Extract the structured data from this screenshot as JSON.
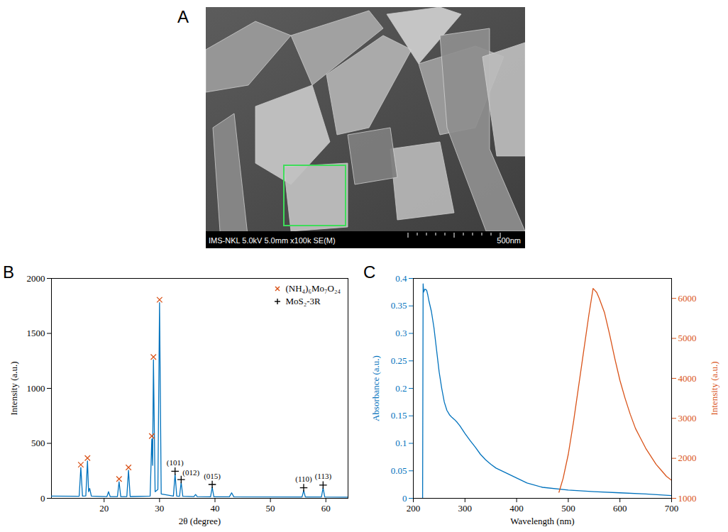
{
  "chart_data": [
    {
      "type": "image",
      "panel": "A",
      "caption": "IMS-NKL 5.0kV 5.0mm x100k SE(M)",
      "scale_bar": "500nm"
    },
    {
      "type": "line",
      "panel": "B",
      "xlabel": "2θ (degree)",
      "ylabel": "Intensity (a.u.)",
      "xlim": [
        10.5,
        64
      ],
      "xticks": [
        20,
        30,
        40,
        50,
        60
      ],
      "ylim": [
        0,
        2000
      ],
      "yticks": [
        0,
        500,
        1000,
        1500,
        2000
      ],
      "legend": "upper right",
      "series": [
        {
          "type": "line",
          "color": "#0072bd",
          "x": [
            10.5,
            15.5,
            15.8,
            16.1,
            16.7,
            17.0,
            17.2,
            17.4,
            17.7,
            20.5,
            20.8,
            21.1,
            22.4,
            22.7,
            23.0,
            24.1,
            24.4,
            24.7,
            28.3,
            28.6,
            28.75,
            28.9,
            29.2,
            29.7,
            30.0,
            30.3,
            32.5,
            32.8,
            33.1,
            33.6,
            33.9,
            34.2,
            36.2,
            36.5,
            36.8,
            39.2,
            39.5,
            39.8,
            42.6,
            43.0,
            43.4,
            55.7,
            56.0,
            56.3,
            59.2,
            59.5,
            59.8,
            64.0
          ],
          "values": [
            20,
            18,
            280,
            20,
            22,
            340,
            60,
            90,
            20,
            15,
            60,
            15,
            15,
            150,
            15,
            16,
            255,
            16,
            20,
            540,
            300,
            1260,
            60,
            80,
            1780,
            40,
            20,
            220,
            20,
            18,
            145,
            18,
            15,
            35,
            15,
            14,
            100,
            14,
            14,
            50,
            14,
            12,
            70,
            12,
            12,
            95,
            12,
            10
          ]
        },
        {
          "type": "scatter",
          "name": "(NH₄)₆Mo₇O₂₄",
          "marker": "x",
          "color": "#d95319",
          "x": [
            15.8,
            17.0,
            22.7,
            24.4,
            28.6,
            28.9,
            30.0
          ],
          "values": [
            280,
            340,
            150,
            255,
            540,
            1260,
            1780
          ]
        },
        {
          "type": "scatter",
          "name": "MoS₂-3R",
          "marker": "+",
          "color": "#000000",
          "x": [
            32.8,
            33.9,
            39.5,
            56.0,
            59.5
          ],
          "values": [
            220,
            145,
            100,
            70,
            95
          ],
          "labels": [
            "(101)",
            "(012)",
            "(015)",
            "(110)",
            "(113)"
          ]
        }
      ]
    },
    {
      "type": "line",
      "panel": "C",
      "xlabel": "Wavelength (nm)",
      "ylabel": "Absorbance (a.u.)",
      "y2label": "Intensity (a.u.)",
      "xlim": [
        200,
        700
      ],
      "xticks": [
        200,
        300,
        400,
        500,
        600,
        700
      ],
      "ylim": [
        0,
        0.4
      ],
      "yticks": [
        0,
        0.05,
        0.1,
        0.15,
        0.2,
        0.25,
        0.3,
        0.35,
        0.4
      ],
      "y2lim": [
        1000,
        6500
      ],
      "y2ticks": [
        1000,
        2000,
        3000,
        4000,
        5000,
        6000
      ],
      "series": [
        {
          "color": "#0072bd",
          "x": [
            218,
            219,
            220,
            222,
            224,
            226,
            228,
            230,
            235,
            240,
            245,
            250,
            255,
            260,
            265,
            270,
            275,
            280,
            285,
            290,
            295,
            300,
            310,
            320,
            330,
            340,
            350,
            360,
            380,
            400,
            420,
            450,
            500,
            550,
            600,
            650,
            700
          ],
          "values": [
            0,
            0.39,
            0.375,
            0.38,
            0.38,
            0.378,
            0.37,
            0.36,
            0.34,
            0.31,
            0.27,
            0.23,
            0.2,
            0.175,
            0.16,
            0.152,
            0.147,
            0.143,
            0.138,
            0.132,
            0.125,
            0.118,
            0.105,
            0.093,
            0.08,
            0.07,
            0.062,
            0.055,
            0.046,
            0.037,
            0.028,
            0.02,
            0.015,
            0.012,
            0.01,
            0.008,
            0.005
          ]
        },
        {
          "color": "#d95319",
          "axis": "y2",
          "x": [
            482,
            490,
            500,
            510,
            520,
            530,
            540,
            548,
            555,
            560,
            570,
            580,
            590,
            600,
            610,
            620,
            630,
            640,
            650,
            660,
            670,
            680,
            690,
            700
          ],
          "values": [
            1150,
            1500,
            2100,
            2900,
            3800,
            4700,
            5600,
            6250,
            6150,
            6000,
            5650,
            5100,
            4500,
            3950,
            3500,
            3100,
            2750,
            2500,
            2250,
            2050,
            1850,
            1700,
            1550,
            1450
          ]
        }
      ]
    }
  ]
}
